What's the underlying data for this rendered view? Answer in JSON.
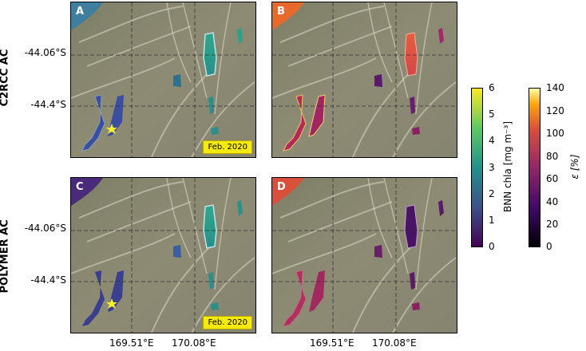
{
  "rows": {
    "top": "C2RCC AC",
    "bottom": "POLYMER AC"
  },
  "panels": {
    "A": {
      "label": "A",
      "date": "Feb. 2020"
    },
    "B": {
      "label": "B"
    },
    "C": {
      "label": "C",
      "date": "Feb. 2020"
    },
    "D": {
      "label": "D"
    }
  },
  "axes": {
    "y_ticks": [
      "-44.06°S",
      "-44.4°S"
    ],
    "x_ticks": [
      "169.51°E",
      "170.08°E"
    ]
  },
  "colorbars": {
    "chla": {
      "label": "BNN chla [mg m⁻³]",
      "ticks": [
        "6",
        "5",
        "4",
        "3",
        "2",
        "1",
        "0"
      ],
      "colormap": "viridis"
    },
    "eps": {
      "label": "ε [%]",
      "ticks": [
        "140",
        "120",
        "100",
        "80",
        "60",
        "40",
        "20",
        "0"
      ],
      "colormap": "inferno"
    }
  },
  "colors": {
    "terrain": "#8c8a72",
    "lake_high": "#2fa58a",
    "lake_low": "#3f3f8f",
    "eps_high": "#e8653a",
    "eps_low": "#5a1660",
    "marker": "#f7ef2a"
  }
}
